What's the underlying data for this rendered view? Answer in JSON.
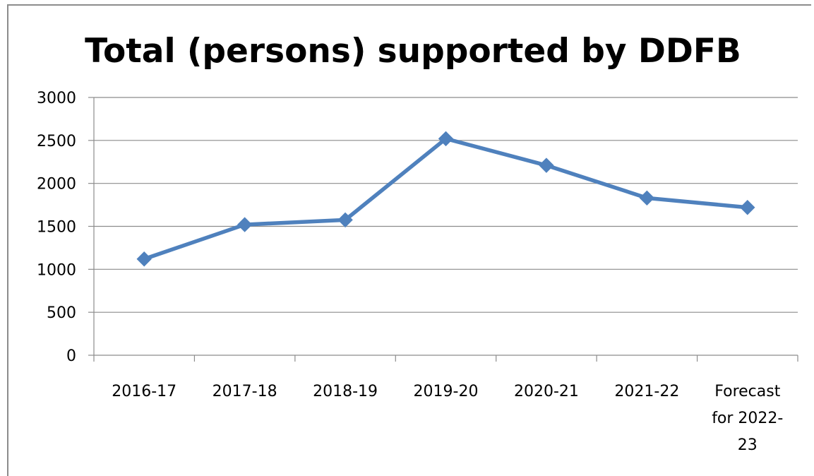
{
  "chart_data": {
    "type": "line",
    "title": "Total (persons) supported by DDFB",
    "categories": [
      "2016-17",
      "2017-18",
      "2018-19",
      "2019-20",
      "2020-21",
      "2021-22",
      "Forecast for 2022-23"
    ],
    "category_label_lines": [
      [
        "2016-17"
      ],
      [
        "2017-18"
      ],
      [
        "2018-19"
      ],
      [
        "2019-20"
      ],
      [
        "2020-21"
      ],
      [
        "2021-22"
      ],
      [
        "Forecast",
        "for 2022-",
        "23"
      ]
    ],
    "series": [
      {
        "values": [
          1120,
          1520,
          1575,
          2520,
          2210,
          1830,
          1720
        ],
        "color": "#4f81bd",
        "marker": "diamond"
      }
    ],
    "ylim": [
      0,
      3000
    ],
    "yticks": [
      "0",
      "500",
      "1000",
      "1500",
      "2000",
      "2500",
      "3000"
    ],
    "ytick_values": [
      0,
      500,
      1000,
      1500,
      2000,
      2500,
      3000
    ],
    "grid": true,
    "gridline_color": "#8c8c8c",
    "legend": "none"
  }
}
